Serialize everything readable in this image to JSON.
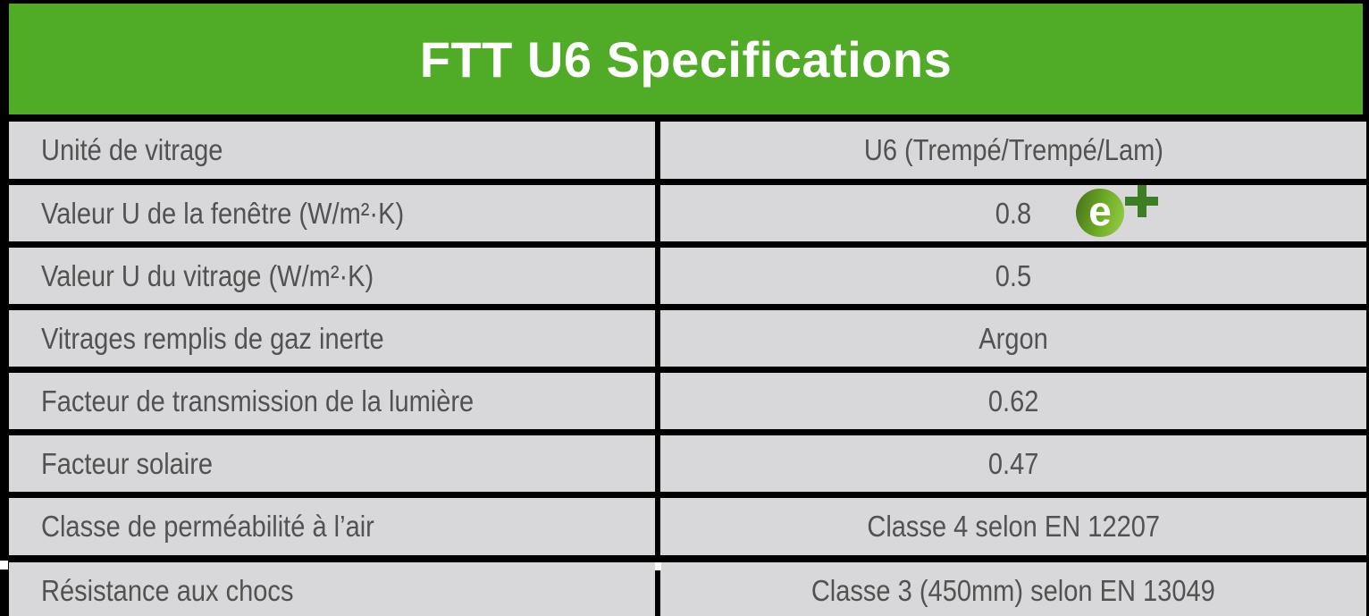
{
  "header": {
    "title": "FTT U6 Specifications"
  },
  "table": {
    "rows": [
      {
        "label": "Unité de vitrage",
        "value": "U6 (Trempé/Trempé/Lam)"
      },
      {
        "label": "Valeur U de la fenêtre (W/m²·K)",
        "value": "0.8"
      },
      {
        "label": "Valeur U du vitrage (W/m²·K)",
        "value": "0.5"
      },
      {
        "label": "Vitrages remplis de gaz inerte",
        "value": "Argon"
      },
      {
        "label": "Facteur de transmission de la lumière",
        "value": "0.62"
      },
      {
        "label": "Facteur solaire",
        "value": "0.47"
      },
      {
        "label": "Classe de perméabilité à l’air",
        "value": "Classe 4 selon EN 12207"
      },
      {
        "label": "Résistance aux chocs",
        "value": "Classe 3 (450mm) selon EN 13049"
      }
    ]
  },
  "logo": {
    "name": "eplus-logo",
    "letter": "e",
    "plus": "+"
  },
  "colors": {
    "header_green": "#50AB26",
    "row_bg": "#D8D8DA",
    "text_gray": "#525252",
    "black": "#000000",
    "white": "#FFFFFF",
    "logo_plus": "#3C7D26",
    "logo_dark": "#4E7C1D",
    "logo_mid": "#6FAE24",
    "logo_light": "#8DC63F"
  }
}
